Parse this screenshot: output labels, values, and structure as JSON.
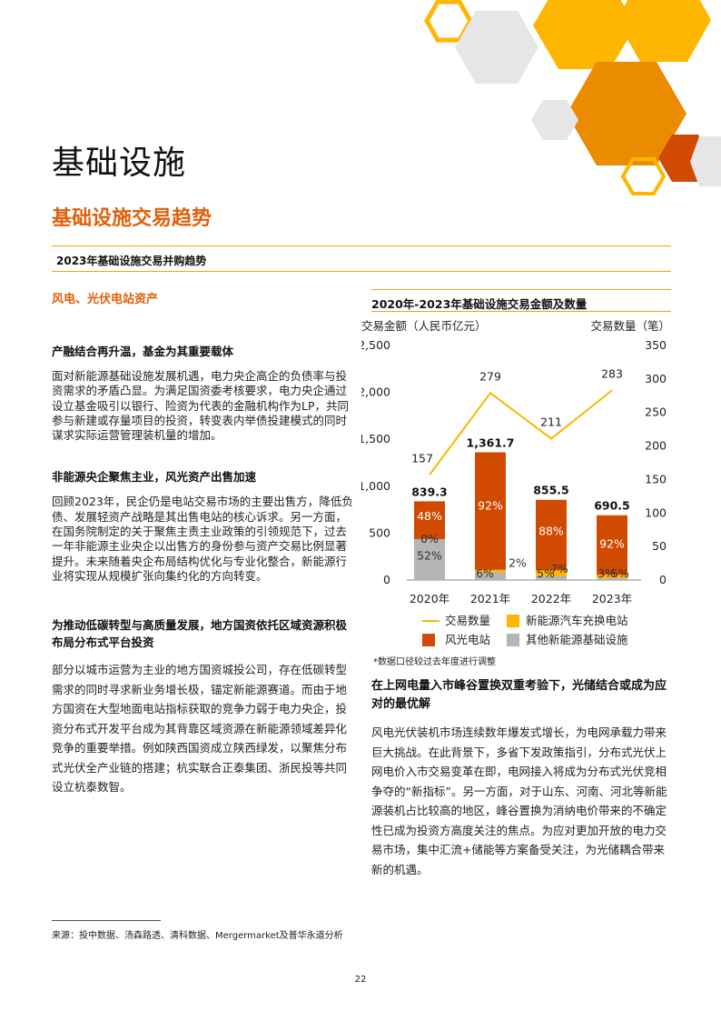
{
  "page": {
    "title": "基础设施",
    "section_title": "基础设施交易趋势",
    "subtitle": "2023年基础设施交易并购趋势",
    "page_number": "22",
    "source": "来源：投中数据、汤森路透、清科数据、Mergermarket及普华永道分析"
  },
  "left": {
    "topic": "风电、光伏电站资产",
    "paragraphs": [
      {
        "heading": "产融结合再升温，基金为其重要载体",
        "body": "面对新能源基础设施发展机遇，电力央企高企的负债率与投资需求的矛盾凸显。为满足国资委考核要求，电力央企通过设立基金吸引以银行、险资为代表的金融机构作为LP，共同参与新建或存量项目的投资，转变表内举债投建模式的同时谋求实际运营管理装机量的增加。"
      },
      {
        "heading": "非能源央企聚焦主业，风光资产出售加速",
        "body": "回顾2023年，民企仍是电站交易市场的主要出售方，降低负债、发展轻资产战略是其出售电站的核心诉求。另一方面，在国务院制定的关于聚焦主责主业政策的引领规范下，过去一年非能源主业央企以出售方的身份参与资产交易比例显著提升。未来随着央企布局结构优化与专业化整合，新能源行业将实现从规模扩张向集约化的方向转变。"
      },
      {
        "heading": "为推动低碳转型与高质量发展，地方国资依托区域资源积极布局分布式平台投资",
        "body": "部分以城市运营为主业的地方国资城投公司，存在低碳转型需求的同时寻求新业务增长极，锚定新能源赛道。而由于地方国资在大型地面电站指标获取的竞争力弱于电力央企，投资分布式开发平台成为其背靠区域资源在新能源领域差异化竞争的重要举措。例如陕西国资成立陕西绿发，以聚焦分布式光伏全产业链的搭建；杭实联合正泰集团、浙民投等共同设立杭泰数智。"
      }
    ]
  },
  "right": {
    "heading": "在上网电量入市峰谷置换双重考验下，光储结合或成为应对的最优解",
    "body": "风电光伏装机市场连续数年爆发式增长，为电网承载力带来巨大挑战。在此背景下，多省下发政策指引，分布式光伏上网电价入市交易变革在即，电网接入将成为分布式光伏竞相争夺的“新指标”。另一方面，对于山东、河南、河北等新能源装机占比较高的地区，峰谷置换为消纳电价带来的不确定性已成为投资方高度关注的焦点。为应对更加开放的电力交易市场，集中汇流+储能等方案备受关注，为光储耦合带来新的机遇。"
  },
  "chart_data": {
    "type": "bar",
    "title": "2020年-2023年基础设施交易金额及数量",
    "ylabel": "交易金额（人民币亿元）",
    "y2label": "交易数量（笔）",
    "ylim": [
      0,
      2500
    ],
    "y2lim": [
      0,
      350
    ],
    "yticks": [
      "0",
      "500",
      "1,000",
      "1,500",
      "2,000",
      "2,500"
    ],
    "y2ticks": [
      "0",
      "50",
      "100",
      "150",
      "200",
      "250",
      "300",
      "350"
    ],
    "categories": [
      "2020年",
      "2021年",
      "2022年",
      "2023年"
    ],
    "totals": [
      839.3,
      1361.7,
      855.5,
      690.5
    ],
    "total_labels": [
      "839.3",
      "1,361.7",
      "855.5",
      "690.5"
    ],
    "series": [
      {
        "name": "其他新能源基础设施",
        "pct": [
          52,
          6,
          5,
          3
        ],
        "labels": [
          "52%",
          "6%",
          "5%",
          "3%"
        ],
        "color": "#b5b5b5"
      },
      {
        "name": "新能源汽车充换电站",
        "pct": [
          0,
          2,
          7,
          5
        ],
        "labels": [
          "0%",
          "2%",
          "7%",
          "5%"
        ],
        "color": "#ffb600"
      },
      {
        "name": "风光电站",
        "pct": [
          48,
          92,
          88,
          92
        ],
        "labels": [
          "48%",
          "92%",
          "88%",
          "92%"
        ],
        "color": "#d04a02"
      }
    ],
    "line": {
      "name": "交易数量",
      "values": [
        157,
        279,
        211,
        283
      ],
      "labels": [
        "157",
        "279",
        "211",
        "283"
      ],
      "color": "#ffb600"
    },
    "note": "*数据口径较过去年度进行调整",
    "legend": "bottom"
  },
  "colors": {
    "accent": "#e0600b",
    "dark_orange": "#d04a02",
    "amber": "#ffb600",
    "gray": "#b5b5b5"
  }
}
